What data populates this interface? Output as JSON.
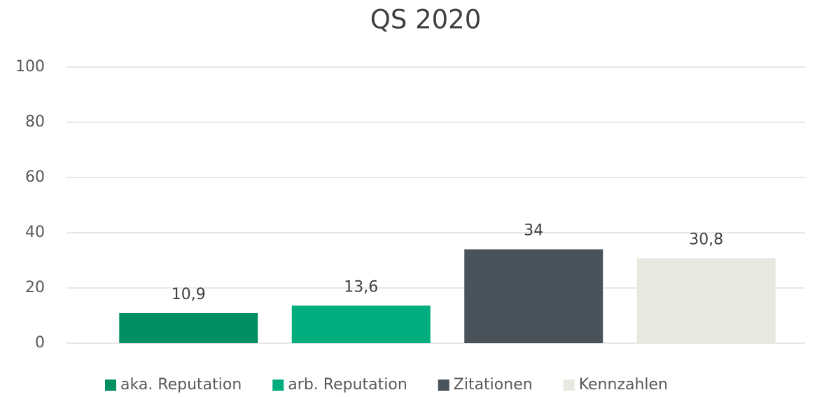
{
  "chart_data": {
    "type": "bar",
    "title": "QS 2020",
    "series": [
      {
        "name": "aka. Reputation",
        "color": "#008f62",
        "values": [
          10.9
        ],
        "value_labels": [
          "10,9"
        ]
      },
      {
        "name": "arb. Reputation",
        "color": "#00ad7e",
        "values": [
          13.6
        ],
        "value_labels": [
          "13,6"
        ]
      },
      {
        "name": "Zitationen",
        "color": "#48535c",
        "values": [
          34
        ]
      },
      {
        "name": "Kennzahlen",
        "color": "#e9e8e0",
        "values": [
          30.8
        ],
        "value_labels": [
          "30,8"
        ]
      }
    ],
    "ylim": [
      0,
      100
    ],
    "yticks": [
      0,
      20,
      40,
      60,
      80,
      100
    ],
    "grid": true,
    "legend": "bottom"
  }
}
